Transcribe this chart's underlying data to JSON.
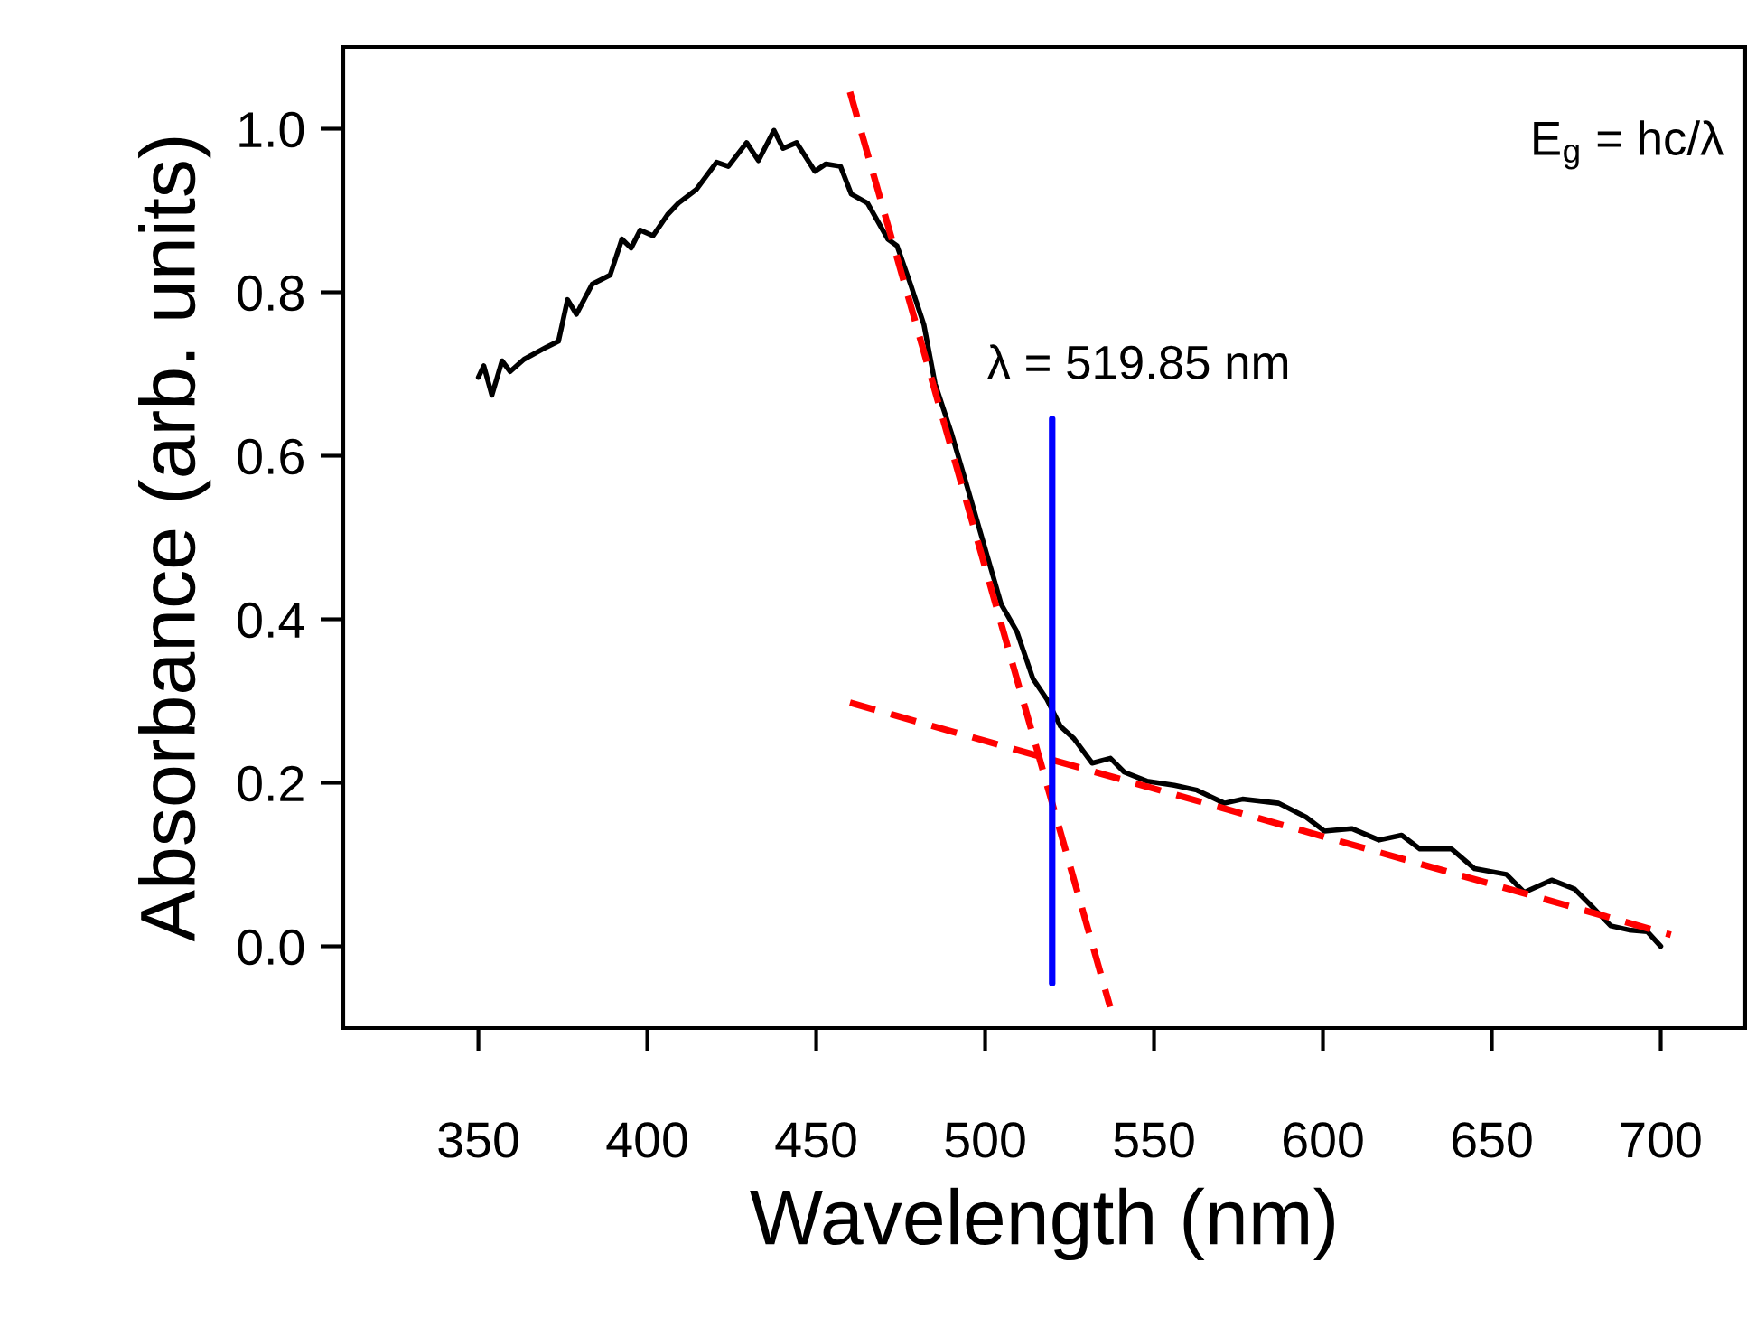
{
  "chart_data": {
    "type": "line",
    "xlabel": "Wavelength (nm)",
    "ylabel": "Absorbance (arb. units)",
    "xlim": [
      310,
      725
    ],
    "ylim": [
      -0.1,
      1.1
    ],
    "xticks": [
      350,
      400,
      450,
      500,
      550,
      600,
      650,
      700
    ],
    "yticks": [
      {
        "value": 0,
        "label": "0.0"
      },
      0.2,
      0.4,
      0.6,
      0.8,
      {
        "value": 1,
        "label": "1.0"
      }
    ],
    "grid": false,
    "legend": false,
    "series": [
      {
        "color": "#000000",
        "line_style": "solid",
        "x": [
          350,
          351.6,
          354,
          357,
          359.4,
          363.5,
          370.2,
          373.7,
          376.4,
          379,
          383.7,
          389,
          392.5,
          395.2,
          397.9,
          401.7,
          406,
          409.2,
          414.6,
          420.5,
          424,
          429.4,
          432.9,
          437.5,
          440.2,
          444.2,
          449.6,
          452.9,
          457.2,
          460.4,
          465.2,
          471.2,
          473.9,
          477.9,
          481.9,
          485.2,
          490,
          494,
          499.4,
          504.8,
          509.4,
          514.2,
          518.3,
          522.3,
          526.3,
          531.7,
          537.1,
          541.2,
          547.9,
          556,
          562.7,
          570.8,
          576.2,
          586.9,
          595,
          600.4,
          608.5,
          616.6,
          623.3,
          628.7,
          638.1,
          644.9,
          654.3,
          659.6,
          667.7,
          674.5,
          679.8,
          685.2,
          690.6,
          696,
          700
        ],
        "values": [
          0.696,
          0.71,
          0.674,
          0.716,
          0.703,
          0.718,
          0.733,
          0.74,
          0.791,
          0.773,
          0.81,
          0.821,
          0.865,
          0.854,
          0.876,
          0.869,
          0.895,
          0.909,
          0.926,
          0.959,
          0.954,
          0.983,
          0.961,
          0.998,
          0.976,
          0.983,
          0.948,
          0.957,
          0.954,
          0.92,
          0.909,
          0.865,
          0.857,
          0.81,
          0.76,
          0.688,
          0.628,
          0.572,
          0.495,
          0.418,
          0.385,
          0.327,
          0.302,
          0.269,
          0.254,
          0.224,
          0.23,
          0.213,
          0.202,
          0.197,
          0.191,
          0.175,
          0.18,
          0.175,
          0.158,
          0.141,
          0.144,
          0.13,
          0.136,
          0.119,
          0.119,
          0.095,
          0.088,
          0.066,
          0.081,
          0.07,
          0.048,
          0.025,
          0.02,
          0.018,
          0.0
        ]
      },
      {
        "color": "#ff0000",
        "line_style": "dashed",
        "x": [
          460,
          537
        ],
        "values": [
          1.045,
          -0.074
        ]
      },
      {
        "color": "#ff0000",
        "line_style": "dashed",
        "x": [
          460,
          703
        ],
        "values": [
          0.298,
          0.014
        ]
      },
      {
        "color": "#0000ff",
        "line_style": "solid",
        "x": [
          519.85,
          519.85
        ],
        "values": [
          0.645,
          -0.045
        ]
      }
    ],
    "annotations": [
      {
        "text": "λ = 519.85 nm",
        "x": 519.85,
        "y": 0.645
      },
      "E$_{g}$ = hc/λ"
    ]
  }
}
